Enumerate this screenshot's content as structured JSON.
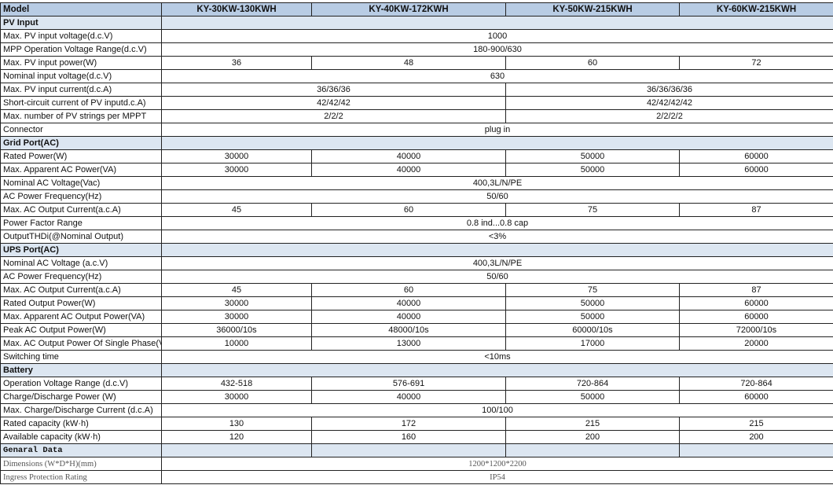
{
  "header": {
    "label": "Model",
    "models": [
      "KY-30KW-130KWH",
      "KY-40KW-172KWH",
      "KY-50KW-215KWH",
      "KY-60KW-215KWH"
    ]
  },
  "colors": {
    "header_bg": "#b8cce4",
    "section_bg": "#dce6f1"
  },
  "rows": [
    {
      "type": "section",
      "label": "PV Input",
      "cells": [
        {
          "v": "",
          "span": 4
        }
      ]
    },
    {
      "label": "Max. PV input voltage(d.c.V)",
      "cells": [
        {
          "v": "1000",
          "span": 4
        }
      ]
    },
    {
      "label": "MPP Operation Voltage Range(d.c.V)",
      "cells": [
        {
          "v": "180-900/630",
          "span": 4
        }
      ]
    },
    {
      "label": "Max. PV input power(W)",
      "cells": [
        {
          "v": "36"
        },
        {
          "v": "48"
        },
        {
          "v": "60"
        },
        {
          "v": "72"
        }
      ]
    },
    {
      "label": "Nominal input voltage(d.c.V)",
      "cells": [
        {
          "v": "630",
          "span": 4
        }
      ]
    },
    {
      "label": "Max. PV input current(d.c.A)",
      "cells": [
        {
          "v": "36/36/36",
          "span": 2
        },
        {
          "v": "36/36/36/36",
          "span": 2
        }
      ]
    },
    {
      "label": "Short-circuit current of PV inputd.c.A)",
      "cells": [
        {
          "v": "42/42/42",
          "span": 2
        },
        {
          "v": "42/42/42/42",
          "span": 2
        }
      ]
    },
    {
      "label": "Max. number of PV strings per MPPT",
      "cells": [
        {
          "v": "2/2/2",
          "span": 2
        },
        {
          "v": "2/2/2/2",
          "span": 2
        }
      ]
    },
    {
      "label": "Connector",
      "cells": [
        {
          "v": "plug in",
          "span": 4
        }
      ]
    },
    {
      "type": "section",
      "label": "Grid Port(AC)",
      "cells": [
        {
          "v": "",
          "span": 4
        }
      ]
    },
    {
      "label": "Rated Power(W)",
      "cells": [
        {
          "v": "30000"
        },
        {
          "v": "40000"
        },
        {
          "v": "50000"
        },
        {
          "v": "60000"
        }
      ]
    },
    {
      "label": "Max. Apparent AC Power(VA)",
      "cells": [
        {
          "v": "30000"
        },
        {
          "v": "40000"
        },
        {
          "v": "50000"
        },
        {
          "v": "60000"
        }
      ]
    },
    {
      "label": "Nominal AC Voltage(Vac)",
      "cells": [
        {
          "v": "400,3L/N/PE",
          "span": 4
        }
      ]
    },
    {
      "label": "AC Power Frequency(Hz)",
      "cells": [
        {
          "v": "50/60",
          "span": 4
        }
      ]
    },
    {
      "label": "Max. AC Output Current(a.c.A)",
      "cells": [
        {
          "v": "45"
        },
        {
          "v": "60"
        },
        {
          "v": "75"
        },
        {
          "v": "87"
        }
      ]
    },
    {
      "label": "Power Factor  Range",
      "cells": [
        {
          "v": "0.8 ind...0.8 cap",
          "span": 4
        }
      ]
    },
    {
      "label": "OutputTHDi(@Nominal Output)",
      "cells": [
        {
          "v": "<3%",
          "span": 4
        }
      ]
    },
    {
      "type": "section",
      "label": "UPS Port(AC)",
      "cells": [
        {
          "v": "",
          "span": 4
        }
      ]
    },
    {
      "label": "Nominal AC Voltage (a.c.V)",
      "cells": [
        {
          "v": "400,3L/N/PE",
          "span": 4
        }
      ]
    },
    {
      "label": "AC Power Frequency(Hz)",
      "cells": [
        {
          "v": "50/60",
          "span": 4
        }
      ]
    },
    {
      "label": "Max. AC Output Current(a.c.A)",
      "cells": [
        {
          "v": "45"
        },
        {
          "v": "60"
        },
        {
          "v": "75"
        },
        {
          "v": "87"
        }
      ]
    },
    {
      "label": "Rated Output Power(W)",
      "cells": [
        {
          "v": "30000"
        },
        {
          "v": "40000"
        },
        {
          "v": "50000"
        },
        {
          "v": "60000"
        }
      ]
    },
    {
      "label": "Max. Apparent AC Output Power(VA)",
      "cells": [
        {
          "v": "30000"
        },
        {
          "v": "40000"
        },
        {
          "v": "50000"
        },
        {
          "v": "60000"
        }
      ]
    },
    {
      "label": "Peak AC Output Power(W)",
      "cells": [
        {
          "v": "36000/10s"
        },
        {
          "v": "48000/10s"
        },
        {
          "v": "60000/10s"
        },
        {
          "v": "72000/10s"
        }
      ]
    },
    {
      "label": "Max. AC Output Power Of Single Phase(VA)",
      "cells": [
        {
          "v": "10000"
        },
        {
          "v": "13000"
        },
        {
          "v": "17000"
        },
        {
          "v": "20000"
        }
      ]
    },
    {
      "label": "Switching time",
      "cells": [
        {
          "v": "<10ms",
          "span": 4
        }
      ]
    },
    {
      "type": "section",
      "label": "Battery",
      "cells": [
        {
          "v": "",
          "span": 4
        }
      ]
    },
    {
      "label": "Operation Voltage Range  (d.c.V)",
      "cells": [
        {
          "v": "432-518"
        },
        {
          "v": "576-691"
        },
        {
          "v": "720-864"
        },
        {
          "v": "720-864"
        }
      ]
    },
    {
      "label": "Charge/Discharge Power  (W)",
      "cells": [
        {
          "v": "30000"
        },
        {
          "v": "40000"
        },
        {
          "v": "50000"
        },
        {
          "v": "60000"
        }
      ]
    },
    {
      "label": "Max. Charge/Discharge Current  (d.c.A)",
      "cells": [
        {
          "v": "100/100",
          "span": 4
        }
      ]
    },
    {
      "label": "Rated capacity  (kW·h)",
      "cells": [
        {
          "v": "130"
        },
        {
          "v": "172"
        },
        {
          "v": "215"
        },
        {
          "v": "215"
        }
      ]
    },
    {
      "label": "Available capacity  (kW·h)",
      "cells": [
        {
          "v": "120"
        },
        {
          "v": "160"
        },
        {
          "v": "200"
        },
        {
          "v": "200"
        }
      ]
    },
    {
      "type": "section serif",
      "label": "Genaral Data",
      "cells": [
        {
          "v": ""
        },
        {
          "v": ""
        },
        {
          "v": ""
        },
        {
          "v": ""
        }
      ]
    },
    {
      "type": "serif",
      "label": "Dimensions (W*D*H)(mm)",
      "cells": [
        {
          "v": "1200*1200*2200",
          "span": 4
        }
      ]
    },
    {
      "type": "serif",
      "label": "Ingress Protection Rating",
      "cells": [
        {
          "v": "IP54",
          "span": 4
        }
      ]
    }
  ]
}
